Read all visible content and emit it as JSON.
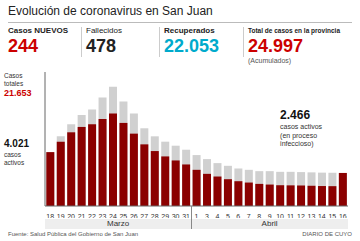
{
  "chart_data": {
    "type": "bar",
    "title": "Evolución de coronavirus en San Juan",
    "categories": [
      "18",
      "19",
      "20",
      "21",
      "22",
      "23",
      "24",
      "25",
      "26",
      "27",
      "28",
      "29",
      "30",
      "31",
      "1",
      "3",
      "4",
      "5",
      "6",
      "7",
      "8",
      "9",
      "10",
      "11",
      "12",
      "13",
      "14",
      "15",
      "16"
    ],
    "series": [
      {
        "color": "#d0d0d0",
        "values": [
          4021,
          5200,
          6100,
          6800,
          7200,
          8100,
          8900,
          7800,
          6900,
          5800,
          5200,
          4800,
          4500,
          4200,
          3800,
          3500,
          3200,
          3000,
          2800,
          2700,
          2600,
          2600,
          2550,
          2550,
          2530,
          2510,
          2490,
          2480,
          2466
        ]
      },
      {
        "color": "#8b0000",
        "values": [
          4021,
          4800,
          5500,
          5900,
          6100,
          6500,
          6900,
          6200,
          5400,
          4600,
          4100,
          3700,
          3400,
          3100,
          2700,
          2400,
          2200,
          2000,
          1850,
          1750,
          1650,
          1600,
          1550,
          1540,
          1530,
          1510,
          1490,
          1480,
          2466
        ]
      }
    ],
    "ylim": [
      0,
      10000
    ],
    "stacked": false,
    "grid": false,
    "tick_labels": "x",
    "annotations": [
      {
        "text": "Casos NUEVOS"
      },
      {
        "text": "244",
        "color": "#cc0000"
      },
      {
        "text": "Fallecidos"
      },
      {
        "text": "478"
      },
      {
        "text": "Recuperados"
      },
      {
        "text": "22.053",
        "color": "#00aacc"
      },
      {
        "text": "Total de casos en la provincia"
      },
      {
        "text": "24.997",
        "color": "#cc0000"
      },
      {
        "text": "(Acumulados)"
      },
      {
        "text": "Casos\ntotales"
      },
      {
        "text": "21.653",
        "color": "#cc0000"
      },
      {
        "text": "4.021"
      },
      {
        "text": "casos\nactivos"
      },
      {
        "text": "2.466"
      },
      {
        "text": "casos activos\n(en proceso\ninfeccioso)"
      },
      {
        "text": "Marzo"
      },
      {
        "text": "Abril"
      },
      {
        "text": "Fuente: Salud Pública del Gobierno de San Juan"
      },
      {
        "text": "DIARIO DE CUYO"
      }
    ]
  }
}
